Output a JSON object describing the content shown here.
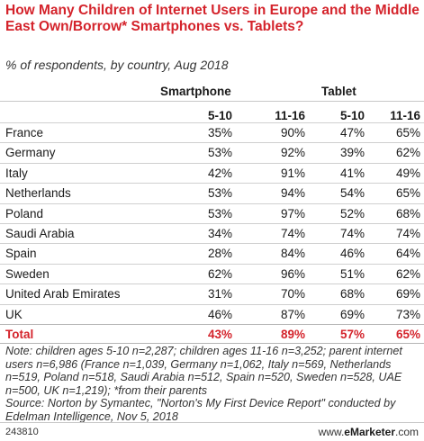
{
  "chart_data": {
    "type": "table",
    "title": "How Many Children of Internet Users in Europe and the Middle East Own/Borrow* Smartphones vs. Tablets?",
    "subtitle": "% of respondents, by country, Aug 2018",
    "groups": [
      "Smartphone",
      "Tablet"
    ],
    "columns": [
      "5-10",
      "11-16",
      "5-10",
      "11-16"
    ],
    "rows": [
      {
        "label": "France",
        "values": [
          "35%",
          "90%",
          "47%",
          "65%"
        ]
      },
      {
        "label": "Germany",
        "values": [
          "53%",
          "92%",
          "39%",
          "62%"
        ]
      },
      {
        "label": "Italy",
        "values": [
          "42%",
          "91%",
          "41%",
          "49%"
        ]
      },
      {
        "label": "Netherlands",
        "values": [
          "53%",
          "94%",
          "54%",
          "65%"
        ]
      },
      {
        "label": "Poland",
        "values": [
          "53%",
          "97%",
          "52%",
          "68%"
        ]
      },
      {
        "label": "Saudi Arabia",
        "values": [
          "34%",
          "74%",
          "74%",
          "74%"
        ]
      },
      {
        "label": "Spain",
        "values": [
          "28%",
          "84%",
          "46%",
          "64%"
        ]
      },
      {
        "label": "Sweden",
        "values": [
          "62%",
          "96%",
          "51%",
          "62%"
        ]
      },
      {
        "label": "United Arab Emirates",
        "values": [
          "31%",
          "70%",
          "68%",
          "69%"
        ]
      },
      {
        "label": "UK",
        "values": [
          "46%",
          "87%",
          "69%",
          "73%"
        ]
      }
    ],
    "total": {
      "label": "Total",
      "values": [
        "43%",
        "89%",
        "57%",
        "65%"
      ]
    }
  },
  "note": "Note: children ages 5-10 n=2,287; children ages 11-16 n=3,252; parent internet users n=6,986 (France n=1,039, Germany n=1,062, Italy n=569, Netherlands n=519, Poland n=518, Saudi Arabia n=512, Spain n=520, Sweden n=528, UAE n=500, UK n=1,219); *from their parents",
  "source": "Source: Norton by Symantec, \"Norton's My First Device Report\" conducted by Edelman Intelligence, Nov 5, 2018",
  "footer": {
    "id": "243810",
    "brand_prefix": "www.",
    "brand_name": "eMarketer",
    "brand_suffix": ".com"
  },
  "colors": {
    "accent": "#d4232b"
  }
}
